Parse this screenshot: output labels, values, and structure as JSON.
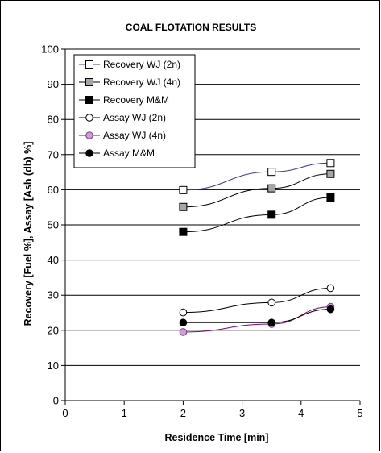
{
  "chart_data": {
    "type": "line",
    "title": "COAL FLOTATION RESULTS",
    "xlabel": "Residence Time [min]",
    "ylabel": "Recovery [Fuel %], Assay [Ash (db) %]",
    "xlim": [
      0,
      5
    ],
    "ylim": [
      0,
      100
    ],
    "xticks": [
      "0",
      "1",
      "2",
      "3",
      "4",
      "5"
    ],
    "yticks": [
      "0",
      "10",
      "20",
      "30",
      "40",
      "50",
      "60",
      "70",
      "80",
      "90",
      "100"
    ],
    "grid": "horizontal",
    "legend_position": "top-left",
    "series": [
      {
        "name": "Recovery WJ (2n)",
        "marker": "square",
        "fill": "#ffffff",
        "stroke": "#000000",
        "line": "#3a3aa8",
        "x": [
          2,
          3.5,
          4.5
        ],
        "y": [
          59.9,
          65.1,
          67.6
        ]
      },
      {
        "name": "Recovery WJ (4n)",
        "marker": "square",
        "fill": "#a6a6a6",
        "stroke": "#000000",
        "line": "#000000",
        "x": [
          2,
          3.5,
          4.5
        ],
        "y": [
          55.1,
          60.4,
          64.5
        ]
      },
      {
        "name": "Recovery M&M",
        "marker": "square",
        "fill": "#000000",
        "stroke": "#000000",
        "line": "#000000",
        "x": [
          2,
          3.5,
          4.5
        ],
        "y": [
          48.0,
          52.9,
          57.8
        ]
      },
      {
        "name": "Assay WJ (2n)",
        "marker": "circle",
        "fill": "#ffffff",
        "stroke": "#000000",
        "line": "#000000",
        "x": [
          2,
          3.5,
          4.5
        ],
        "y": [
          25.1,
          27.9,
          32.0
        ]
      },
      {
        "name": "Assay WJ (4n)",
        "marker": "circle",
        "fill": "#c8a0d2",
        "stroke": "#7a3a8a",
        "line": "#800080",
        "x": [
          2,
          3.5,
          4.5
        ],
        "y": [
          19.5,
          21.8,
          26.7
        ]
      },
      {
        "name": "Assay M&M",
        "marker": "circle",
        "fill": "#000000",
        "stroke": "#000000",
        "line": "#000000",
        "x": [
          2,
          3.5,
          4.5
        ],
        "y": [
          22.2,
          22.2,
          26.0
        ]
      }
    ]
  }
}
